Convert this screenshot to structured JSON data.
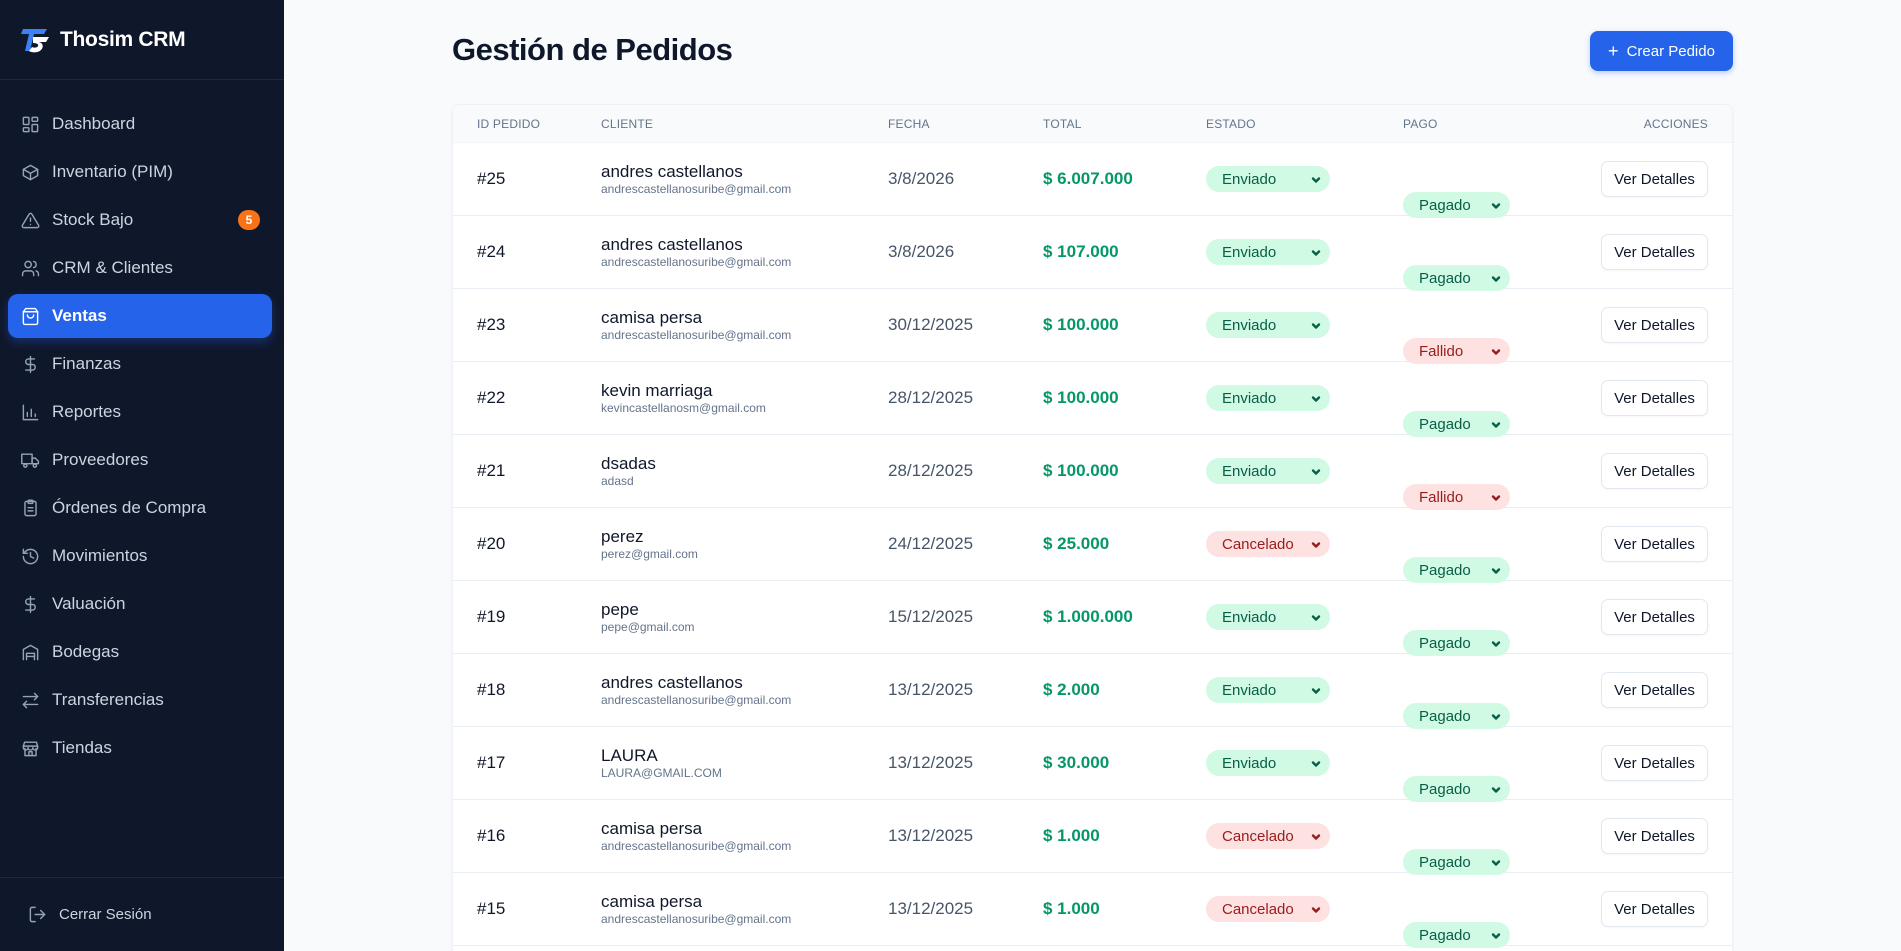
{
  "app": {
    "name": "Thosim CRM"
  },
  "sidebar": {
    "items": [
      {
        "label": "Dashboard",
        "icon": "grid-icon",
        "active": false
      },
      {
        "label": "Inventario (PIM)",
        "icon": "box-icon",
        "active": false
      },
      {
        "label": "Stock Bajo",
        "icon": "alert-triangle-icon",
        "active": false,
        "badge": "5"
      },
      {
        "label": "CRM & Clientes",
        "icon": "users-icon",
        "active": false
      },
      {
        "label": "Ventas",
        "icon": "shopping-bag-icon",
        "active": true
      },
      {
        "label": "Finanzas",
        "icon": "dollar-icon",
        "active": false
      },
      {
        "label": "Reportes",
        "icon": "bar-chart-icon",
        "active": false
      },
      {
        "label": "Proveedores",
        "icon": "truck-icon",
        "active": false
      },
      {
        "label": "Órdenes de Compra",
        "icon": "clipboard-icon",
        "active": false
      },
      {
        "label": "Movimientos",
        "icon": "history-icon",
        "active": false
      },
      {
        "label": "Valuación",
        "icon": "dollar-icon",
        "active": false
      },
      {
        "label": "Bodegas",
        "icon": "warehouse-icon",
        "active": false
      },
      {
        "label": "Transferencias",
        "icon": "transfer-icon",
        "active": false
      },
      {
        "label": "Tiendas",
        "icon": "store-icon",
        "active": false
      }
    ],
    "logout_label": "Cerrar Sesión"
  },
  "header": {
    "title": "Gestión de Pedidos",
    "create_button": "Crear Pedido"
  },
  "table": {
    "columns": [
      "ID PEDIDO",
      "CLIENTE",
      "FECHA",
      "TOTAL",
      "ESTADO",
      "PAGO",
      "ACCIONES"
    ],
    "action_label": "Ver Detalles",
    "rows": [
      {
        "id": "#25",
        "client": "andres castellanos",
        "email": "andrescastellanosuribe@gmail.com",
        "date": "3/8/2026",
        "total": "$ 6.007.000",
        "status": "Enviado",
        "payment": "Pagado"
      },
      {
        "id": "#24",
        "client": "andres castellanos",
        "email": "andrescastellanosuribe@gmail.com",
        "date": "3/8/2026",
        "total": "$ 107.000",
        "status": "Enviado",
        "payment": "Pagado"
      },
      {
        "id": "#23",
        "client": "camisa persa",
        "email": "andrescastellanosuribe@gmail.com",
        "date": "30/12/2025",
        "total": "$ 100.000",
        "status": "Enviado",
        "payment": "Fallido"
      },
      {
        "id": "#22",
        "client": "kevin marriaga",
        "email": "kevincastellanosm@gmail.com",
        "date": "28/12/2025",
        "total": "$ 100.000",
        "status": "Enviado",
        "payment": "Pagado"
      },
      {
        "id": "#21",
        "client": "dsadas",
        "email": "adasd",
        "date": "28/12/2025",
        "total": "$ 100.000",
        "status": "Enviado",
        "payment": "Fallido"
      },
      {
        "id": "#20",
        "client": "perez",
        "email": "perez@gmail.com",
        "date": "24/12/2025",
        "total": "$ 25.000",
        "status": "Cancelado",
        "payment": "Pagado"
      },
      {
        "id": "#19",
        "client": "pepe",
        "email": "pepe@gmail.com",
        "date": "15/12/2025",
        "total": "$ 1.000.000",
        "status": "Enviado",
        "payment": "Pagado"
      },
      {
        "id": "#18",
        "client": "andres castellanos",
        "email": "andrescastellanosuribe@gmail.com",
        "date": "13/12/2025",
        "total": "$ 2.000",
        "status": "Enviado",
        "payment": "Pagado"
      },
      {
        "id": "#17",
        "client": "LAURA",
        "email": "LAURA@GMAIL.COM",
        "date": "13/12/2025",
        "total": "$ 30.000",
        "status": "Enviado",
        "payment": "Pagado"
      },
      {
        "id": "#16",
        "client": "camisa persa",
        "email": "andrescastellanosuribe@gmail.com",
        "date": "13/12/2025",
        "total": "$ 1.000",
        "status": "Cancelado",
        "payment": "Pagado"
      },
      {
        "id": "#15",
        "client": "camisa persa",
        "email": "andrescastellanosuribe@gmail.com",
        "date": "13/12/2025",
        "total": "$ 1.000",
        "status": "Cancelado",
        "payment": "Pagado"
      }
    ]
  },
  "colors": {
    "sidebar_bg": "#0f172a",
    "accent": "#2563eb",
    "total_text": "#059669",
    "positive_bg": "#d1fae5",
    "negative_bg": "#fee2e2",
    "badge": "#f97316"
  }
}
